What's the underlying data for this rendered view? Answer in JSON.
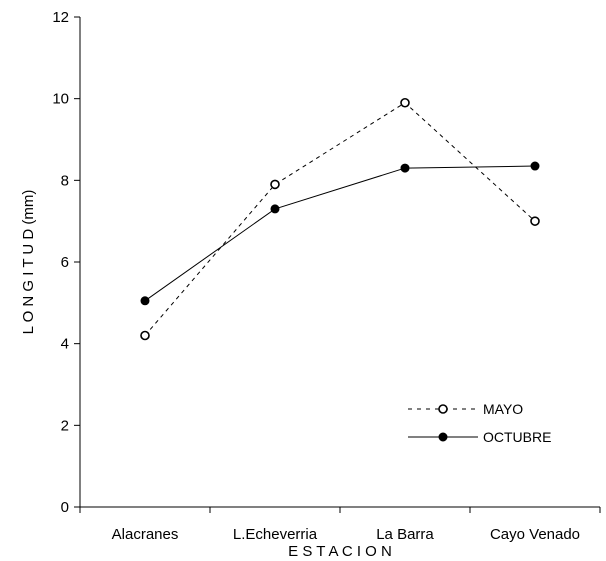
{
  "chart_data": {
    "type": "line",
    "categories": [
      "Alacranes",
      "L.Echeverria",
      "La Barra",
      "Cayo Venado"
    ],
    "series": [
      {
        "name": "MAYO",
        "values": [
          4.2,
          7.9,
          9.9,
          7.0
        ],
        "line_style": "dashed",
        "marker": "open-circle",
        "color": "#000000"
      },
      {
        "name": "OCTUBRE",
        "values": [
          5.05,
          7.3,
          8.3,
          8.35
        ],
        "line_style": "solid",
        "marker": "filled-circle",
        "color": "#000000"
      }
    ],
    "xlabel": "E S T A C I O N",
    "ylabel": "L O N G I T U D  (mm)",
    "ylim": [
      0,
      12
    ],
    "yticks": [
      "0",
      "2",
      "4",
      "6",
      "8",
      "10",
      "12"
    ],
    "grid": false,
    "legend_position": "bottom-right"
  }
}
